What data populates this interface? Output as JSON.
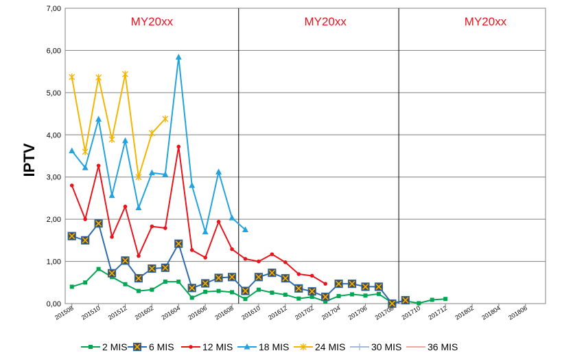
{
  "chart_data": {
    "type": "line",
    "ylabel": "IPTV",
    "ylim": [
      0,
      7
    ],
    "y_ticks": [
      "0,00",
      "1,00",
      "2,00",
      "3,00",
      "4,00",
      "5,00",
      "6,00",
      "7,00"
    ],
    "x_tick_labels": [
      "201508",
      "201510",
      "201512",
      "201602",
      "201604",
      "201606",
      "201608",
      "201610",
      "201612",
      "201702",
      "201704",
      "201706",
      "201708",
      "201710",
      "201712",
      "201802",
      "201804",
      "201806"
    ],
    "period_count": 36,
    "annotations": [
      {
        "text": "MY20xx",
        "period": 6
      },
      {
        "text": "MY20xx",
        "period": 19
      },
      {
        "text": "MY20xx",
        "period": 31
      }
    ],
    "vertical_lines_at_period": [
      12.5,
      24.5
    ],
    "grid": "horizontal",
    "legend_position": "bottom",
    "series": [
      {
        "name": "2 MIS",
        "color": "#00a651",
        "marker": "square",
        "values": [
          0.4,
          0.5,
          0.82,
          0.63,
          0.46,
          0.3,
          0.33,
          0.52,
          0.52,
          0.14,
          0.28,
          0.3,
          0.27,
          0.11,
          0.33,
          0.26,
          0.21,
          0.12,
          0.16,
          0.05,
          0.18,
          0.22,
          0.19,
          0.23,
          0.02,
          0.06,
          0.01,
          0.09,
          0.11
        ]
      },
      {
        "name": "6 MIS",
        "color": "#2e6aa8",
        "marker": "xbox",
        "values": [
          1.6,
          1.5,
          1.9,
          0.72,
          1.02,
          0.6,
          0.83,
          0.85,
          1.42,
          0.37,
          0.48,
          0.61,
          0.63,
          0.3,
          0.63,
          0.73,
          0.6,
          0.36,
          0.29,
          0.16,
          0.47,
          0.47,
          0.4,
          0.4,
          0.0,
          0.08
        ]
      },
      {
        "name": "12 MIS",
        "color": "#e8141c",
        "marker": "dot",
        "values": [
          2.8,
          2.0,
          3.27,
          1.58,
          2.3,
          1.13,
          1.83,
          1.79,
          3.72,
          1.27,
          1.09,
          1.94,
          1.29,
          1.06,
          1.0,
          1.17,
          0.98,
          0.7,
          0.66,
          0.47
        ]
      },
      {
        "name": "18 MIS",
        "color": "#22a3dd",
        "marker": "triangle",
        "values": [
          3.62,
          3.22,
          4.37,
          2.56,
          3.86,
          2.27,
          3.1,
          3.06,
          5.84,
          2.8,
          1.7,
          3.12,
          2.03,
          1.75
        ]
      },
      {
        "name": "24 MIS",
        "color": "#f5b400",
        "marker": "star",
        "values": [
          5.37,
          3.6,
          5.36,
          3.89,
          5.44,
          3.0,
          4.04,
          4.38
        ]
      },
      {
        "name": "30 MIS",
        "color": "#a5b8d8",
        "marker": "plus",
        "values": []
      },
      {
        "name": "36 MIS",
        "color": "#f4a6a6",
        "marker": "none",
        "values": []
      }
    ]
  }
}
